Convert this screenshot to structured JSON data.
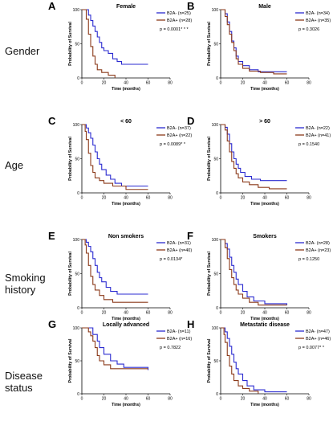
{
  "colors": {
    "blue": "#2b2bd0",
    "red": "#8b3a1a",
    "axis": "#000000"
  },
  "row_labels": [
    {
      "lines": [
        "Gender"
      ]
    },
    {
      "lines": [
        "Age"
      ]
    },
    {
      "lines": [
        "Smoking",
        "history"
      ]
    },
    {
      "lines": [
        "Disease",
        "status"
      ]
    }
  ],
  "chart_data": [
    {
      "type": "line",
      "panel": "A",
      "title": "Female",
      "xlabel": "Time (months)",
      "ylabel": "Probability of Survival",
      "xlim": [
        0,
        80
      ],
      "ylim": [
        0,
        100
      ],
      "xticks": [
        0,
        20,
        40,
        60,
        80
      ],
      "yticks": [
        0,
        50,
        100
      ],
      "pvalue_text": "p = 0.0001* * *",
      "series": [
        {
          "name": "B2A- (n=25)",
          "color": "blue",
          "points": [
            [
              0,
              100
            ],
            [
              4,
              100
            ],
            [
              6,
              92
            ],
            [
              8,
              84
            ],
            [
              10,
              76
            ],
            [
              12,
              68
            ],
            [
              14,
              60
            ],
            [
              16,
              52
            ],
            [
              18,
              44
            ],
            [
              20,
              40
            ],
            [
              24,
              36
            ],
            [
              28,
              28
            ],
            [
              32,
              24
            ],
            [
              36,
              20
            ],
            [
              60,
              20
            ]
          ]
        },
        {
          "name": "B2A+ (n=28)",
          "color": "red",
          "points": [
            [
              0,
              100
            ],
            [
              3,
              100
            ],
            [
              4,
              86
            ],
            [
              6,
              64
            ],
            [
              8,
              46
            ],
            [
              10,
              32
            ],
            [
              12,
              20
            ],
            [
              14,
              12
            ],
            [
              18,
              8
            ],
            [
              24,
              4
            ],
            [
              30,
              0
            ]
          ]
        }
      ]
    },
    {
      "type": "line",
      "panel": "B",
      "title": "Male",
      "xlabel": "Time (months)",
      "ylabel": "Probability of Survival",
      "xlim": [
        0,
        80
      ],
      "ylim": [
        0,
        100
      ],
      "xticks": [
        0,
        20,
        40,
        60,
        80
      ],
      "yticks": [
        0,
        50,
        100
      ],
      "pvalue_text": "p = 0.3026",
      "series": [
        {
          "name": "B2A- (n=34)",
          "color": "blue",
          "points": [
            [
              0,
              100
            ],
            [
              4,
              94
            ],
            [
              6,
              82
            ],
            [
              8,
              68
            ],
            [
              10,
              54
            ],
            [
              12,
              44
            ],
            [
              14,
              32
            ],
            [
              16,
              24
            ],
            [
              20,
              18
            ],
            [
              26,
              12
            ],
            [
              34,
              9
            ],
            [
              60,
              9
            ]
          ]
        },
        {
          "name": "B2A+ (n=35)",
          "color": "red",
          "points": [
            [
              0,
              100
            ],
            [
              4,
              90
            ],
            [
              6,
              78
            ],
            [
              8,
              64
            ],
            [
              10,
              52
            ],
            [
              12,
              40
            ],
            [
              14,
              28
            ],
            [
              16,
              20
            ],
            [
              20,
              14
            ],
            [
              26,
              10
            ],
            [
              36,
              8
            ],
            [
              48,
              6
            ],
            [
              60,
              6
            ]
          ]
        }
      ]
    },
    {
      "type": "line",
      "panel": "C",
      "title": "< 60",
      "xlabel": "Time (months)",
      "ylabel": "Probability of Survival",
      "xlim": [
        0,
        80
      ],
      "ylim": [
        0,
        100
      ],
      "xticks": [
        0,
        20,
        40,
        60,
        80
      ],
      "yticks": [
        0,
        50,
        100
      ],
      "pvalue_text": "p = 0.0089* *",
      "series": [
        {
          "name": "B2A- (n=37)",
          "color": "blue",
          "points": [
            [
              0,
              100
            ],
            [
              4,
              95
            ],
            [
              6,
              88
            ],
            [
              8,
              80
            ],
            [
              10,
              70
            ],
            [
              12,
              60
            ],
            [
              14,
              50
            ],
            [
              16,
              42
            ],
            [
              18,
              34
            ],
            [
              22,
              26
            ],
            [
              26,
              20
            ],
            [
              30,
              14
            ],
            [
              36,
              10
            ],
            [
              60,
              10
            ]
          ]
        },
        {
          "name": "B2A+ (n=22)",
          "color": "red",
          "points": [
            [
              0,
              100
            ],
            [
              3,
              90
            ],
            [
              4,
              78
            ],
            [
              6,
              58
            ],
            [
              8,
              40
            ],
            [
              10,
              30
            ],
            [
              12,
              22
            ],
            [
              16,
              18
            ],
            [
              20,
              14
            ],
            [
              28,
              10
            ],
            [
              40,
              5
            ],
            [
              60,
              5
            ]
          ]
        }
      ]
    },
    {
      "type": "line",
      "panel": "D",
      "title": "> 60",
      "xlabel": "Time (months)",
      "ylabel": "Probability of Survival",
      "xlim": [
        0,
        80
      ],
      "ylim": [
        0,
        100
      ],
      "xticks": [
        0,
        20,
        40,
        60,
        80
      ],
      "yticks": [
        0,
        50,
        100
      ],
      "pvalue_text": "p = 0.1540",
      "series": [
        {
          "name": "B2A- (n=22)",
          "color": "blue",
          "points": [
            [
              0,
              100
            ],
            [
              4,
              96
            ],
            [
              6,
              86
            ],
            [
              8,
              72
            ],
            [
              10,
              60
            ],
            [
              12,
              50
            ],
            [
              14,
              42
            ],
            [
              16,
              36
            ],
            [
              18,
              30
            ],
            [
              22,
              24
            ],
            [
              28,
              20
            ],
            [
              36,
              18
            ],
            [
              60,
              18
            ]
          ]
        },
        {
          "name": "B2A+ (n=41)",
          "color": "red",
          "points": [
            [
              0,
              100
            ],
            [
              4,
              92
            ],
            [
              6,
              76
            ],
            [
              8,
              60
            ],
            [
              10,
              46
            ],
            [
              12,
              36
            ],
            [
              14,
              28
            ],
            [
              16,
              22
            ],
            [
              20,
              16
            ],
            [
              26,
              12
            ],
            [
              34,
              8
            ],
            [
              44,
              6
            ],
            [
              60,
              6
            ]
          ]
        }
      ]
    },
    {
      "type": "line",
      "panel": "E",
      "title": "Non smokers",
      "xlabel": "Time (months)",
      "ylabel": "Probability of Survival",
      "xlim": [
        0,
        80
      ],
      "ylim": [
        0,
        100
      ],
      "xticks": [
        0,
        20,
        40,
        60,
        80
      ],
      "yticks": [
        0,
        50,
        100
      ],
      "pvalue_text": "p = 0.0134*",
      "series": [
        {
          "name": "B2A- (n=31)",
          "color": "blue",
          "points": [
            [
              0,
              100
            ],
            [
              4,
              96
            ],
            [
              6,
              90
            ],
            [
              8,
              82
            ],
            [
              10,
              72
            ],
            [
              12,
              62
            ],
            [
              14,
              52
            ],
            [
              16,
              44
            ],
            [
              18,
              38
            ],
            [
              22,
              30
            ],
            [
              26,
              24
            ],
            [
              32,
              20
            ],
            [
              60,
              20
            ]
          ]
        },
        {
          "name": "B2A+ (n=40)",
          "color": "red",
          "points": [
            [
              0,
              100
            ],
            [
              3,
              92
            ],
            [
              4,
              80
            ],
            [
              6,
              62
            ],
            [
              8,
              46
            ],
            [
              10,
              34
            ],
            [
              12,
              26
            ],
            [
              16,
              18
            ],
            [
              20,
              12
            ],
            [
              28,
              8
            ],
            [
              60,
              8
            ]
          ]
        }
      ]
    },
    {
      "type": "line",
      "panel": "F",
      "title": "Smokers",
      "xlabel": "Time (months)",
      "ylabel": "Probability of Survival",
      "xlim": [
        0,
        80
      ],
      "ylim": [
        0,
        100
      ],
      "xticks": [
        0,
        20,
        40,
        60,
        80
      ],
      "yticks": [
        0,
        50,
        100
      ],
      "pvalue_text": "p = 0.1250",
      "series": [
        {
          "name": "B2A- (n=28)",
          "color": "blue",
          "points": [
            [
              0,
              100
            ],
            [
              4,
              94
            ],
            [
              6,
              86
            ],
            [
              8,
              74
            ],
            [
              10,
              62
            ],
            [
              12,
              52
            ],
            [
              14,
              42
            ],
            [
              16,
              34
            ],
            [
              20,
              24
            ],
            [
              24,
              16
            ],
            [
              30,
              10
            ],
            [
              40,
              6
            ],
            [
              60,
              4
            ]
          ]
        },
        {
          "name": "B2A+ (n=23)",
          "color": "red",
          "points": [
            [
              0,
              100
            ],
            [
              4,
              88
            ],
            [
              6,
              72
            ],
            [
              8,
              56
            ],
            [
              10,
              44
            ],
            [
              12,
              34
            ],
            [
              14,
              26
            ],
            [
              16,
              20
            ],
            [
              20,
              14
            ],
            [
              26,
              8
            ],
            [
              34,
              4
            ],
            [
              60,
              4
            ]
          ]
        }
      ]
    },
    {
      "type": "line",
      "panel": "G",
      "title": "Locally advanced",
      "xlabel": "Time (months)",
      "ylabel": "Probability of Survival",
      "xlim": [
        0,
        80
      ],
      "ylim": [
        0,
        100
      ],
      "xticks": [
        0,
        20,
        40,
        60,
        80
      ],
      "yticks": [
        0,
        50,
        100
      ],
      "pvalue_text": "p = 0.7822",
      "series": [
        {
          "name": "B2A- (n=11)",
          "color": "blue",
          "points": [
            [
              0,
              100
            ],
            [
              8,
              100
            ],
            [
              10,
              90
            ],
            [
              14,
              80
            ],
            [
              16,
              70
            ],
            [
              20,
              60
            ],
            [
              26,
              50
            ],
            [
              32,
              45
            ],
            [
              38,
              40
            ],
            [
              60,
              36
            ]
          ]
        },
        {
          "name": "B2A+ (n=16)",
          "color": "red",
          "points": [
            [
              0,
              100
            ],
            [
              6,
              94
            ],
            [
              8,
              88
            ],
            [
              10,
              80
            ],
            [
              12,
              70
            ],
            [
              14,
              58
            ],
            [
              16,
              50
            ],
            [
              20,
              44
            ],
            [
              26,
              38
            ],
            [
              60,
              38
            ]
          ]
        }
      ]
    },
    {
      "type": "line",
      "panel": "H",
      "title": "Metastatic disease",
      "xlabel": "Time (months)",
      "ylabel": "Probability of Survival",
      "xlim": [
        0,
        80
      ],
      "ylim": [
        0,
        100
      ],
      "xticks": [
        0,
        20,
        40,
        60,
        80
      ],
      "yticks": [
        0,
        50,
        100
      ],
      "pvalue_text": "p = 0.0077* *",
      "series": [
        {
          "name": "B2A- (n=47)",
          "color": "blue",
          "points": [
            [
              0,
              100
            ],
            [
              4,
              94
            ],
            [
              6,
              84
            ],
            [
              8,
              72
            ],
            [
              10,
              60
            ],
            [
              12,
              48
            ],
            [
              14,
              38
            ],
            [
              16,
              30
            ],
            [
              20,
              20
            ],
            [
              24,
              12
            ],
            [
              30,
              6
            ],
            [
              40,
              3
            ],
            [
              60,
              3
            ]
          ]
        },
        {
          "name": "B2A+ (n=46)",
          "color": "red",
          "points": [
            [
              0,
              100
            ],
            [
              3,
              90
            ],
            [
              4,
              78
            ],
            [
              6,
              58
            ],
            [
              8,
              42
            ],
            [
              10,
              30
            ],
            [
              12,
              20
            ],
            [
              16,
              12
            ],
            [
              20,
              8
            ],
            [
              26,
              4
            ],
            [
              34,
              0
            ]
          ]
        }
      ]
    }
  ]
}
